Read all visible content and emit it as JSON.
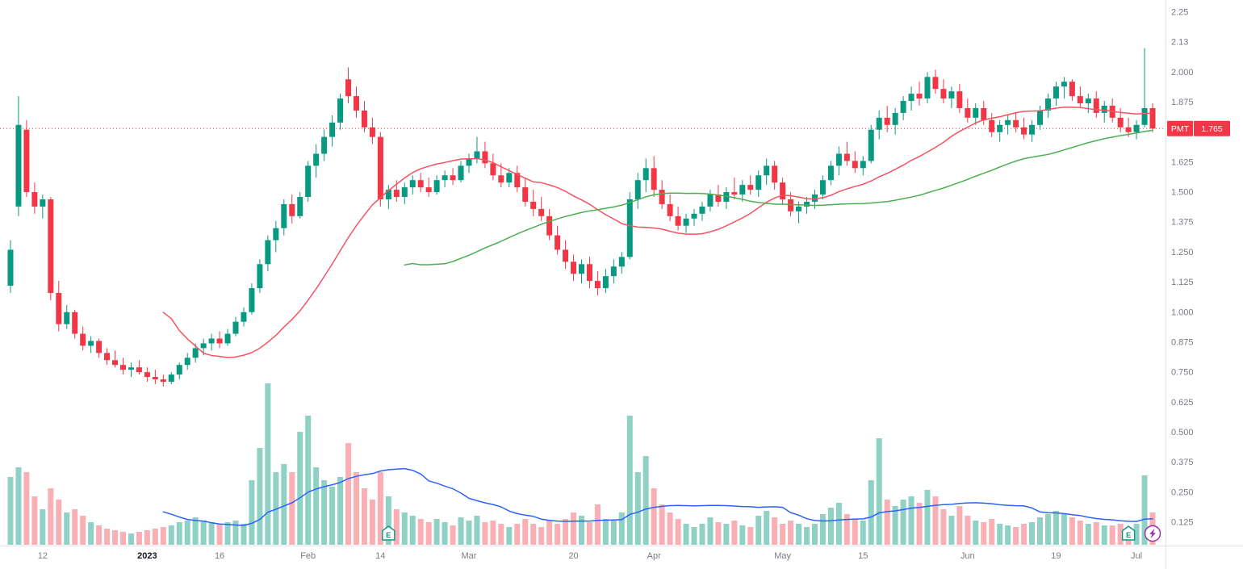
{
  "colors": {
    "background": "#ffffff",
    "up": "#089981",
    "down": "#f23645",
    "volume_up": "rgba(8,153,129,0.45)",
    "volume_down": "rgba(242,54,69,0.40)",
    "price_line": "#f23645",
    "badge_bg": "#f23645",
    "badge_text": "#ffffff",
    "axis_text": "#787b86",
    "axis_text_strong": "#131722",
    "axis_border": "#e0e3eb",
    "earnings": "#089981",
    "flash": "#9c27b0"
  },
  "chart_data": {
    "type": "candlestick",
    "symbol": "PMT",
    "last_price": "1.765",
    "price_line_value": 1.765,
    "grid": false,
    "legend_position": "none",
    "price_axis_ticks": [
      {
        "value": 2.25,
        "label": "2.25"
      },
      {
        "value": 2.125,
        "label": "2.13"
      },
      {
        "value": 2.0,
        "label": "2.000"
      },
      {
        "value": 1.875,
        "label": "1.875"
      },
      {
        "value": 1.625,
        "label": "1.625"
      },
      {
        "value": 1.5,
        "label": "1.500"
      },
      {
        "value": 1.375,
        "label": "1.375"
      },
      {
        "value": 1.25,
        "label": "1.250"
      },
      {
        "value": 1.125,
        "label": "1.125"
      },
      {
        "value": 1.0,
        "label": "1.000"
      },
      {
        "value": 0.875,
        "label": "0.875"
      },
      {
        "value": 0.75,
        "label": "0.750"
      },
      {
        "value": 0.625,
        "label": "0.625"
      },
      {
        "value": 0.5,
        "label": "0.500"
      },
      {
        "value": 0.375,
        "label": "0.375"
      },
      {
        "value": 0.25,
        "label": "0.250"
      },
      {
        "value": 0.125,
        "label": "0.125"
      }
    ],
    "time_axis_labels": [
      {
        "label": "12",
        "bar": 4
      },
      {
        "label": "2023",
        "bar": 17,
        "emphasis": true
      },
      {
        "label": "16",
        "bar": 26
      },
      {
        "label": "Feb",
        "bar": 37
      },
      {
        "label": "14",
        "bar": 46
      },
      {
        "label": "Mar",
        "bar": 57
      },
      {
        "label": "20",
        "bar": 70
      },
      {
        "label": "Apr",
        "bar": 80
      },
      {
        "label": "May",
        "bar": 96
      },
      {
        "label": "15",
        "bar": 106
      },
      {
        "label": "Jun",
        "bar": 119
      },
      {
        "label": "19",
        "bar": 130
      },
      {
        "label": "Jul",
        "bar": 140
      }
    ],
    "overlays": [
      {
        "name": "sma-fast",
        "period": 20,
        "source": "close",
        "color": "#f7525f"
      },
      {
        "name": "sma-slow",
        "period": 50,
        "source": "close",
        "color": "#4caf50"
      },
      {
        "name": "volume-sma",
        "period": 20,
        "source": "volume",
        "color": "#2962ff"
      }
    ],
    "events": [
      {
        "type": "earnings",
        "label": "E",
        "bar": 47
      },
      {
        "type": "earnings",
        "label": "E",
        "bar": 139
      },
      {
        "type": "flash",
        "bar": 142
      }
    ],
    "candles_format": [
      "open",
      "high",
      "low",
      "close",
      "volume_relative"
    ],
    "candles": [
      [
        1.11,
        1.3,
        1.08,
        1.26,
        42
      ],
      [
        1.44,
        1.9,
        1.4,
        1.78,
        48
      ],
      [
        1.76,
        1.8,
        1.48,
        1.5,
        45
      ],
      [
        1.5,
        1.54,
        1.41,
        1.44,
        30
      ],
      [
        1.44,
        1.49,
        1.39,
        1.47,
        22
      ],
      [
        1.47,
        1.48,
        1.05,
        1.08,
        35
      ],
      [
        1.08,
        1.13,
        0.92,
        0.95,
        28
      ],
      [
        0.95,
        1.03,
        0.93,
        1.0,
        20
      ],
      [
        1.0,
        1.01,
        0.89,
        0.91,
        22
      ],
      [
        0.91,
        0.94,
        0.84,
        0.86,
        18
      ],
      [
        0.86,
        0.9,
        0.83,
        0.88,
        14
      ],
      [
        0.88,
        0.89,
        0.81,
        0.83,
        12
      ],
      [
        0.83,
        0.85,
        0.78,
        0.8,
        10
      ],
      [
        0.8,
        0.84,
        0.77,
        0.78,
        9
      ],
      [
        0.78,
        0.81,
        0.74,
        0.76,
        8
      ],
      [
        0.76,
        0.79,
        0.73,
        0.77,
        7
      ],
      [
        0.77,
        0.8,
        0.74,
        0.75,
        8
      ],
      [
        0.75,
        0.77,
        0.71,
        0.73,
        9
      ],
      [
        0.73,
        0.76,
        0.7,
        0.72,
        10
      ],
      [
        0.72,
        0.74,
        0.69,
        0.71,
        11
      ],
      [
        0.71,
        0.75,
        0.7,
        0.74,
        12
      ],
      [
        0.74,
        0.79,
        0.72,
        0.78,
        14
      ],
      [
        0.78,
        0.83,
        0.76,
        0.81,
        15
      ],
      [
        0.81,
        0.87,
        0.79,
        0.85,
        17
      ],
      [
        0.85,
        0.89,
        0.82,
        0.87,
        15
      ],
      [
        0.87,
        0.91,
        0.84,
        0.89,
        14
      ],
      [
        0.89,
        0.92,
        0.85,
        0.87,
        13
      ],
      [
        0.87,
        0.93,
        0.86,
        0.91,
        14
      ],
      [
        0.91,
        0.98,
        0.9,
        0.96,
        15
      ],
      [
        0.96,
        1.02,
        0.94,
        1.0,
        13
      ],
      [
        1.0,
        1.12,
        0.99,
        1.1,
        40
      ],
      [
        1.1,
        1.22,
        1.08,
        1.2,
        60
      ],
      [
        1.2,
        1.32,
        1.17,
        1.3,
        100
      ],
      [
        1.3,
        1.38,
        1.25,
        1.35,
        45
      ],
      [
        1.35,
        1.47,
        1.32,
        1.45,
        50
      ],
      [
        1.45,
        1.49,
        1.37,
        1.4,
        45
      ],
      [
        1.4,
        1.5,
        1.39,
        1.48,
        70
      ],
      [
        1.48,
        1.63,
        1.46,
        1.61,
        80
      ],
      [
        1.61,
        1.7,
        1.56,
        1.66,
        48
      ],
      [
        1.66,
        1.76,
        1.63,
        1.73,
        40
      ],
      [
        1.73,
        1.82,
        1.69,
        1.79,
        36
      ],
      [
        1.79,
        1.91,
        1.76,
        1.89,
        42
      ],
      [
        1.97,
        2.02,
        1.87,
        1.9,
        63
      ],
      [
        1.9,
        1.94,
        1.81,
        1.84,
        45
      ],
      [
        1.84,
        1.88,
        1.75,
        1.77,
        35
      ],
      [
        1.77,
        1.81,
        1.7,
        1.73,
        28
      ],
      [
        1.73,
        1.75,
        1.44,
        1.47,
        45
      ],
      [
        1.47,
        1.53,
        1.43,
        1.51,
        30
      ],
      [
        1.51,
        1.55,
        1.46,
        1.48,
        22
      ],
      [
        1.48,
        1.54,
        1.45,
        1.52,
        20
      ],
      [
        1.52,
        1.57,
        1.49,
        1.55,
        18
      ],
      [
        1.55,
        1.58,
        1.5,
        1.52,
        16
      ],
      [
        1.52,
        1.56,
        1.48,
        1.5,
        14
      ],
      [
        1.5,
        1.57,
        1.49,
        1.55,
        16
      ],
      [
        1.55,
        1.59,
        1.52,
        1.57,
        14
      ],
      [
        1.57,
        1.6,
        1.53,
        1.55,
        12
      ],
      [
        1.55,
        1.63,
        1.54,
        1.61,
        17
      ],
      [
        1.61,
        1.66,
        1.58,
        1.64,
        15
      ],
      [
        1.64,
        1.73,
        1.62,
        1.67,
        18
      ],
      [
        1.67,
        1.71,
        1.6,
        1.62,
        14
      ],
      [
        1.62,
        1.66,
        1.55,
        1.57,
        15
      ],
      [
        1.57,
        1.62,
        1.52,
        1.54,
        13
      ],
      [
        1.54,
        1.6,
        1.52,
        1.58,
        11
      ],
      [
        1.58,
        1.61,
        1.5,
        1.52,
        13
      ],
      [
        1.52,
        1.56,
        1.44,
        1.46,
        16
      ],
      [
        1.46,
        1.51,
        1.4,
        1.43,
        13
      ],
      [
        1.43,
        1.48,
        1.38,
        1.4,
        11
      ],
      [
        1.4,
        1.43,
        1.3,
        1.32,
        15
      ],
      [
        1.32,
        1.36,
        1.24,
        1.26,
        13
      ],
      [
        1.26,
        1.3,
        1.18,
        1.21,
        16
      ],
      [
        1.21,
        1.24,
        1.13,
        1.16,
        20
      ],
      [
        1.16,
        1.22,
        1.12,
        1.2,
        18
      ],
      [
        1.2,
        1.23,
        1.1,
        1.13,
        14
      ],
      [
        1.13,
        1.17,
        1.07,
        1.1,
        25
      ],
      [
        1.1,
        1.18,
        1.08,
        1.15,
        16
      ],
      [
        1.15,
        1.22,
        1.12,
        1.19,
        15
      ],
      [
        1.19,
        1.25,
        1.16,
        1.23,
        20
      ],
      [
        1.23,
        1.5,
        1.22,
        1.47,
        80
      ],
      [
        1.47,
        1.58,
        1.43,
        1.55,
        45
      ],
      [
        1.55,
        1.64,
        1.5,
        1.6,
        55
      ],
      [
        1.6,
        1.65,
        1.48,
        1.51,
        35
      ],
      [
        1.51,
        1.55,
        1.43,
        1.45,
        25
      ],
      [
        1.45,
        1.49,
        1.38,
        1.4,
        20
      ],
      [
        1.4,
        1.44,
        1.34,
        1.36,
        16
      ],
      [
        1.36,
        1.41,
        1.33,
        1.39,
        13
      ],
      [
        1.39,
        1.43,
        1.36,
        1.41,
        11
      ],
      [
        1.41,
        1.46,
        1.38,
        1.44,
        13
      ],
      [
        1.44,
        1.51,
        1.42,
        1.49,
        17
      ],
      [
        1.49,
        1.53,
        1.44,
        1.46,
        14
      ],
      [
        1.46,
        1.52,
        1.43,
        1.5,
        13
      ],
      [
        1.5,
        1.56,
        1.47,
        1.49,
        15
      ],
      [
        1.49,
        1.55,
        1.46,
        1.53,
        12
      ],
      [
        1.53,
        1.57,
        1.49,
        1.51,
        11
      ],
      [
        1.51,
        1.59,
        1.48,
        1.57,
        18
      ],
      [
        1.57,
        1.64,
        1.53,
        1.61,
        21
      ],
      [
        1.61,
        1.63,
        1.51,
        1.54,
        17
      ],
      [
        1.54,
        1.56,
        1.45,
        1.47,
        13
      ],
      [
        1.47,
        1.5,
        1.4,
        1.42,
        15
      ],
      [
        1.42,
        1.46,
        1.37,
        1.44,
        13
      ],
      [
        1.44,
        1.48,
        1.41,
        1.46,
        11
      ],
      [
        1.46,
        1.51,
        1.43,
        1.49,
        13
      ],
      [
        1.49,
        1.57,
        1.47,
        1.55,
        19
      ],
      [
        1.55,
        1.63,
        1.53,
        1.61,
        23
      ],
      [
        1.61,
        1.69,
        1.57,
        1.66,
        26
      ],
      [
        1.66,
        1.71,
        1.61,
        1.63,
        19
      ],
      [
        1.63,
        1.67,
        1.58,
        1.6,
        16
      ],
      [
        1.6,
        1.65,
        1.57,
        1.63,
        15
      ],
      [
        1.63,
        1.78,
        1.62,
        1.76,
        40
      ],
      [
        1.76,
        1.84,
        1.72,
        1.81,
        66
      ],
      [
        1.81,
        1.86,
        1.75,
        1.78,
        28
      ],
      [
        1.78,
        1.85,
        1.74,
        1.83,
        24
      ],
      [
        1.83,
        1.9,
        1.8,
        1.88,
        28
      ],
      [
        1.88,
        1.94,
        1.84,
        1.91,
        30
      ],
      [
        1.91,
        1.96,
        1.86,
        1.89,
        26
      ],
      [
        1.89,
        2.0,
        1.87,
        1.98,
        34
      ],
      [
        1.98,
        2.01,
        1.91,
        1.93,
        30
      ],
      [
        1.93,
        1.97,
        1.87,
        1.89,
        22
      ],
      [
        1.89,
        1.94,
        1.85,
        1.92,
        18
      ],
      [
        1.92,
        1.95,
        1.83,
        1.85,
        24
      ],
      [
        1.85,
        1.89,
        1.79,
        1.81,
        18
      ],
      [
        1.81,
        1.87,
        1.78,
        1.85,
        15
      ],
      [
        1.85,
        1.88,
        1.78,
        1.8,
        14
      ],
      [
        1.8,
        1.83,
        1.73,
        1.75,
        16
      ],
      [
        1.75,
        1.8,
        1.71,
        1.78,
        13
      ],
      [
        1.78,
        1.82,
        1.74,
        1.8,
        12
      ],
      [
        1.8,
        1.83,
        1.75,
        1.77,
        11
      ],
      [
        1.77,
        1.81,
        1.72,
        1.74,
        13
      ],
      [
        1.74,
        1.8,
        1.71,
        1.78,
        14
      ],
      [
        1.78,
        1.86,
        1.76,
        1.84,
        17
      ],
      [
        1.84,
        1.91,
        1.81,
        1.89,
        19
      ],
      [
        1.89,
        1.96,
        1.86,
        1.94,
        21
      ],
      [
        1.94,
        1.98,
        1.89,
        1.96,
        19
      ],
      [
        1.96,
        1.97,
        1.88,
        1.9,
        17
      ],
      [
        1.9,
        1.94,
        1.85,
        1.87,
        15
      ],
      [
        1.87,
        1.91,
        1.83,
        1.89,
        13
      ],
      [
        1.89,
        1.92,
        1.81,
        1.83,
        14
      ],
      [
        1.83,
        1.88,
        1.79,
        1.86,
        12
      ],
      [
        1.86,
        1.89,
        1.79,
        1.81,
        12
      ],
      [
        1.81,
        1.85,
        1.75,
        1.77,
        13
      ],
      [
        1.77,
        1.81,
        1.73,
        1.75,
        11
      ],
      [
        1.75,
        1.8,
        1.72,
        1.78,
        13
      ],
      [
        1.78,
        2.1,
        1.77,
        1.85,
        43
      ],
      [
        1.85,
        1.87,
        1.75,
        1.765,
        20
      ]
    ]
  }
}
